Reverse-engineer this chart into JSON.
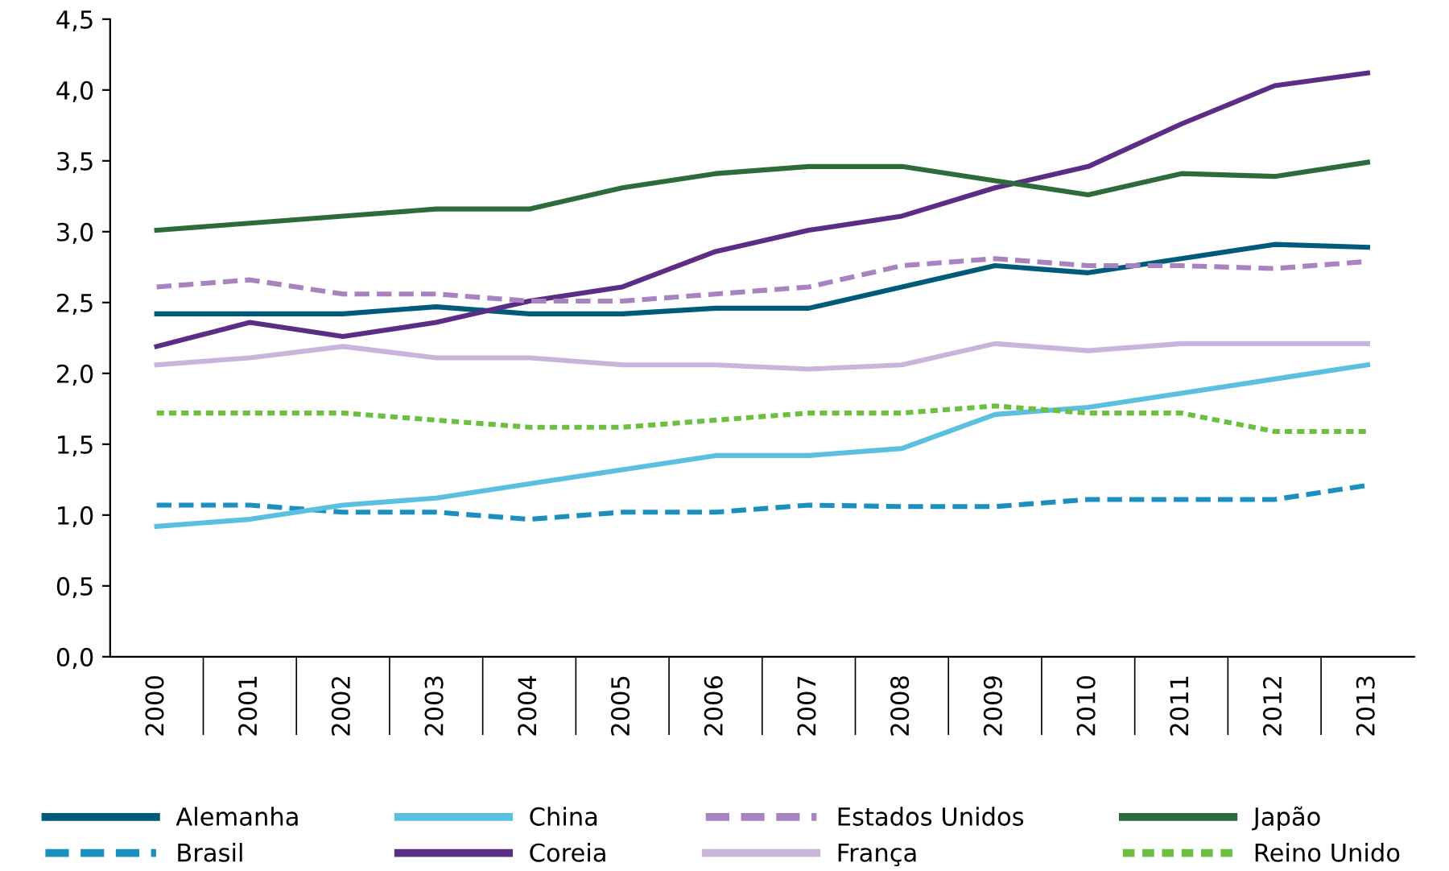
{
  "chart_data": {
    "type": "line",
    "categories": [
      "2000",
      "2001",
      "2002",
      "2003",
      "2004",
      "2005",
      "2006",
      "2007",
      "2008",
      "2009",
      "2010",
      "2011",
      "2012",
      "2013"
    ],
    "series": [
      {
        "name": "Alemanha",
        "color": "#005a7a",
        "line_style": "solid",
        "values": [
          2.42,
          2.42,
          2.42,
          2.47,
          2.42,
          2.42,
          2.46,
          2.46,
          2.61,
          2.76,
          2.71,
          2.81,
          2.91,
          2.89
        ]
      },
      {
        "name": "Brasil",
        "color": "#1a8fc0",
        "line_style": "dashed",
        "values": [
          1.07,
          1.07,
          1.02,
          1.02,
          0.97,
          1.02,
          1.02,
          1.07,
          1.06,
          1.06,
          1.11,
          1.11,
          1.11,
          1.21
        ]
      },
      {
        "name": "China",
        "color": "#5bbfe0",
        "line_style": "solid",
        "values": [
          0.92,
          0.97,
          1.07,
          1.12,
          1.22,
          1.32,
          1.42,
          1.42,
          1.47,
          1.71,
          1.76,
          1.86,
          1.96,
          2.06
        ]
      },
      {
        "name": "Coreia",
        "color": "#5b2d86",
        "line_style": "solid",
        "values": [
          2.19,
          2.36,
          2.26,
          2.36,
          2.51,
          2.61,
          2.86,
          3.01,
          3.11,
          3.31,
          3.46,
          3.76,
          4.03,
          4.12
        ]
      },
      {
        "name": "Estados Unidos",
        "color": "#a883c0",
        "line_style": "dashed",
        "values": [
          2.61,
          2.66,
          2.56,
          2.56,
          2.51,
          2.51,
          2.56,
          2.61,
          2.76,
          2.81,
          2.76,
          2.76,
          2.74,
          2.79
        ]
      },
      {
        "name": "França",
        "color": "#c9b5dc",
        "line_style": "solid",
        "values": [
          2.06,
          2.11,
          2.19,
          2.11,
          2.11,
          2.06,
          2.06,
          2.03,
          2.06,
          2.21,
          2.16,
          2.21,
          2.21,
          2.21
        ]
      },
      {
        "name": "Japão",
        "color": "#2e6b3a",
        "line_style": "solid",
        "values": [
          3.01,
          3.06,
          3.11,
          3.16,
          3.16,
          3.31,
          3.41,
          3.46,
          3.46,
          3.36,
          3.26,
          3.41,
          3.39,
          3.49
        ]
      },
      {
        "name": "Reino Unido",
        "color": "#6cbf3f",
        "line_style": "dotted",
        "values": [
          1.72,
          1.72,
          1.72,
          1.67,
          1.62,
          1.62,
          1.67,
          1.72,
          1.72,
          1.77,
          1.72,
          1.72,
          1.59,
          1.59
        ]
      }
    ],
    "ylim": [
      0,
      4.5
    ],
    "yticks": [
      {
        "value": 0,
        "label": "0,0"
      },
      {
        "value": 0.5,
        "label": "0,5"
      },
      {
        "value": 1,
        "label": "1,0"
      },
      {
        "value": 1.5,
        "label": "1,5"
      },
      {
        "value": 2,
        "label": "2,0"
      },
      {
        "value": 2.5,
        "label": "2,5"
      },
      {
        "value": 3,
        "label": "3,0"
      },
      {
        "value": 3.5,
        "label": "3,5"
      },
      {
        "value": 4,
        "label": "4,0"
      },
      {
        "value": 4.5,
        "label": "4,5"
      }
    ],
    "grid": false,
    "marker": "none",
    "legend": "bottom"
  }
}
